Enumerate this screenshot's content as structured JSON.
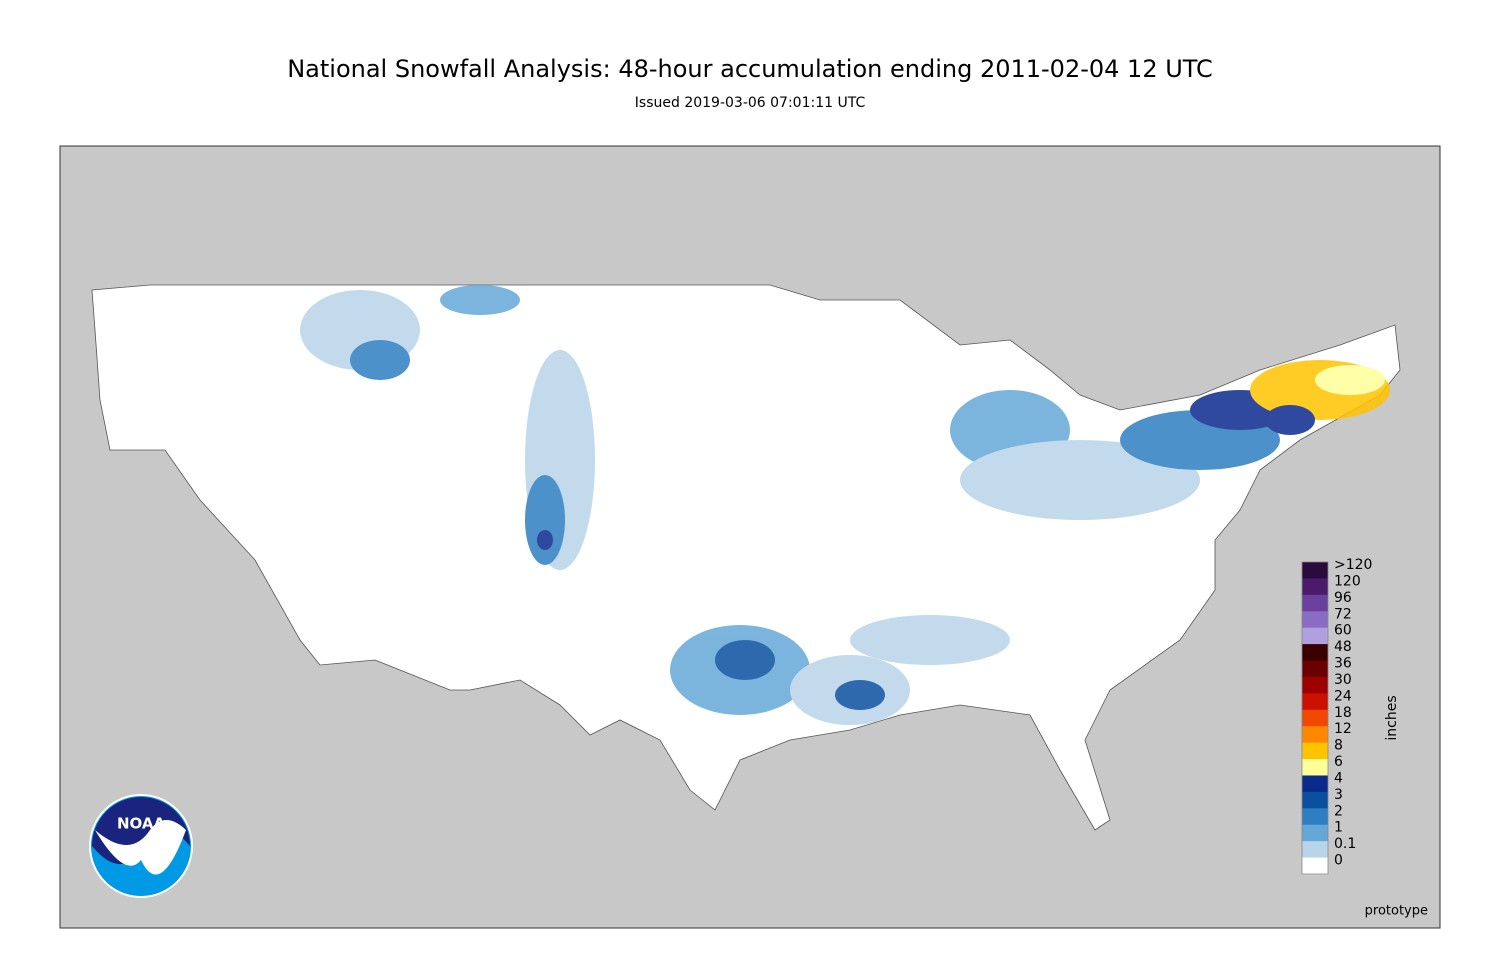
{
  "header": {
    "title": "National Snowfall Analysis: 48-hour accumulation ending 2011-02-04 12 UTC",
    "subtitle": "Issued 2019-03-06 07:01:11 UTC"
  },
  "legend": {
    "unit": "inches",
    "levels": [
      {
        "label": ">120",
        "color": "#2b0a3d"
      },
      {
        "label": "120",
        "color": "#4b1a6b"
      },
      {
        "label": "96",
        "color": "#6b3f9e"
      },
      {
        "label": "72",
        "color": "#8a6cc4"
      },
      {
        "label": "60",
        "color": "#b0a0e0"
      },
      {
        "label": "48",
        "color": "#3a0000"
      },
      {
        "label": "36",
        "color": "#6b0000"
      },
      {
        "label": "30",
        "color": "#9c0000"
      },
      {
        "label": "24",
        "color": "#cc1100"
      },
      {
        "label": "18",
        "color": "#f04800"
      },
      {
        "label": "12",
        "color": "#ff8800"
      },
      {
        "label": "8",
        "color": "#ffc400"
      },
      {
        "label": "6",
        "color": "#ffff99"
      },
      {
        "label": "4",
        "color": "#0a2a8c"
      },
      {
        "label": "3",
        "color": "#0a4fa0"
      },
      {
        "label": "2",
        "color": "#2f7ec2"
      },
      {
        "label": "1",
        "color": "#65a8d8"
      },
      {
        "label": "0.1",
        "color": "#b8d4e8"
      },
      {
        "label": "0",
        "color": "#ffffff"
      }
    ]
  },
  "footer": {
    "note": "prototype",
    "logo": "NOAA"
  }
}
